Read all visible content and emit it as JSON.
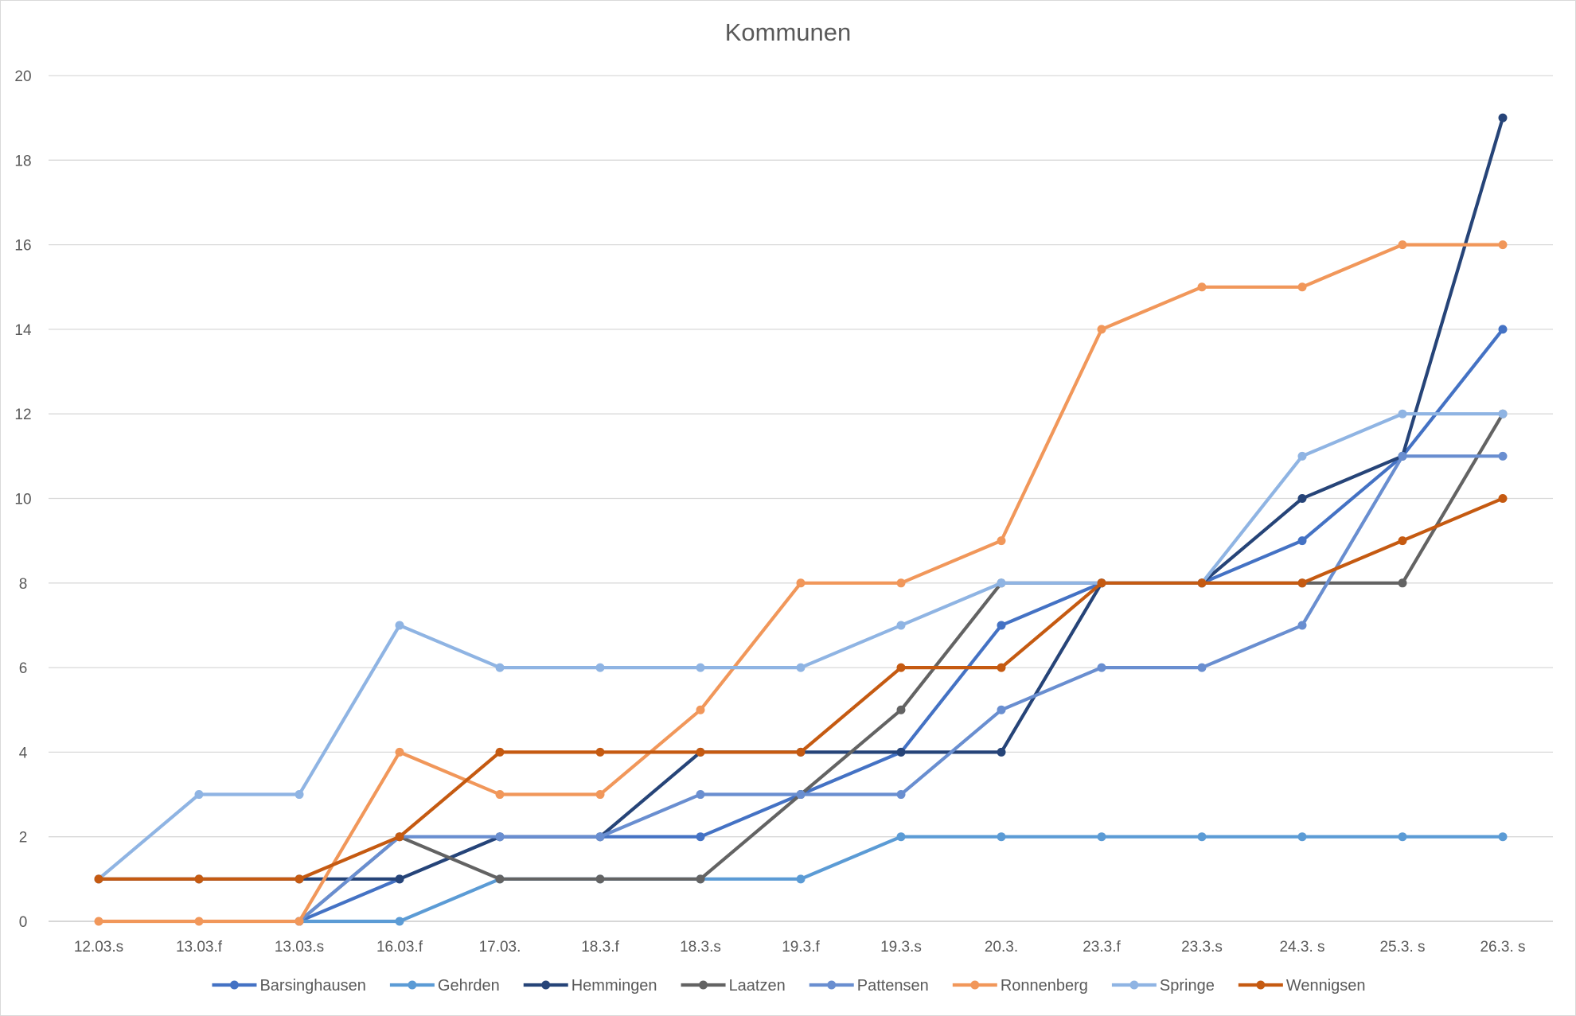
{
  "chart_data": {
    "type": "line",
    "title": "Kommunen",
    "xlabel": "",
    "ylabel": "",
    "categories": [
      "12.03.s",
      "13.03.f",
      "13.03.s",
      "16.03.f",
      "17.03.",
      "18.3.f",
      "18.3.s",
      "19.3.f",
      "19.3.s",
      "20.3.",
      "23.3.f",
      "23.3.s",
      "24.3. s",
      "25.3. s",
      "26.3. s"
    ],
    "ylim": [
      0,
      20
    ],
    "yticks": [
      0,
      2,
      4,
      6,
      8,
      10,
      12,
      14,
      16,
      18,
      20
    ],
    "grid": true,
    "legend_position": "bottom",
    "series": [
      {
        "name": "Barsinghausen",
        "color": "#4472C4",
        "values": [
          null,
          null,
          0,
          1,
          2,
          2,
          2,
          3,
          4,
          7,
          8,
          8,
          9,
          11,
          14
        ]
      },
      {
        "name": "Gehrden",
        "color": "#5B9BD5",
        "values": [
          null,
          null,
          0,
          0,
          1,
          1,
          1,
          1,
          2,
          2,
          2,
          2,
          2,
          2,
          2
        ]
      },
      {
        "name": "Hemmingen",
        "color": "#264478",
        "values": [
          1,
          1,
          1,
          1,
          2,
          2,
          4,
          4,
          4,
          4,
          8,
          8,
          10,
          11,
          19
        ]
      },
      {
        "name": "Laatzen",
        "color": "#636363",
        "values": [
          null,
          null,
          0,
          2,
          1,
          1,
          1,
          3,
          5,
          8,
          8,
          8,
          8,
          8,
          12
        ]
      },
      {
        "name": "Pattensen",
        "color": "#698ED0",
        "values": [
          null,
          null,
          0,
          2,
          2,
          2,
          3,
          3,
          3,
          5,
          6,
          6,
          7,
          11,
          11
        ]
      },
      {
        "name": "Ronnenberg",
        "color": "#F1975A",
        "values": [
          0,
          0,
          0,
          4,
          3,
          3,
          5,
          8,
          8,
          9,
          14,
          15,
          15,
          16,
          16
        ]
      },
      {
        "name": "Springe",
        "color": "#8FB4E3",
        "values": [
          1,
          3,
          3,
          7,
          6,
          6,
          6,
          6,
          7,
          8,
          8,
          8,
          11,
          12,
          12
        ]
      },
      {
        "name": "Wennigsen",
        "color": "#C55A11",
        "values": [
          1,
          1,
          1,
          2,
          4,
          4,
          4,
          4,
          6,
          6,
          8,
          8,
          8,
          9,
          10
        ]
      }
    ]
  }
}
